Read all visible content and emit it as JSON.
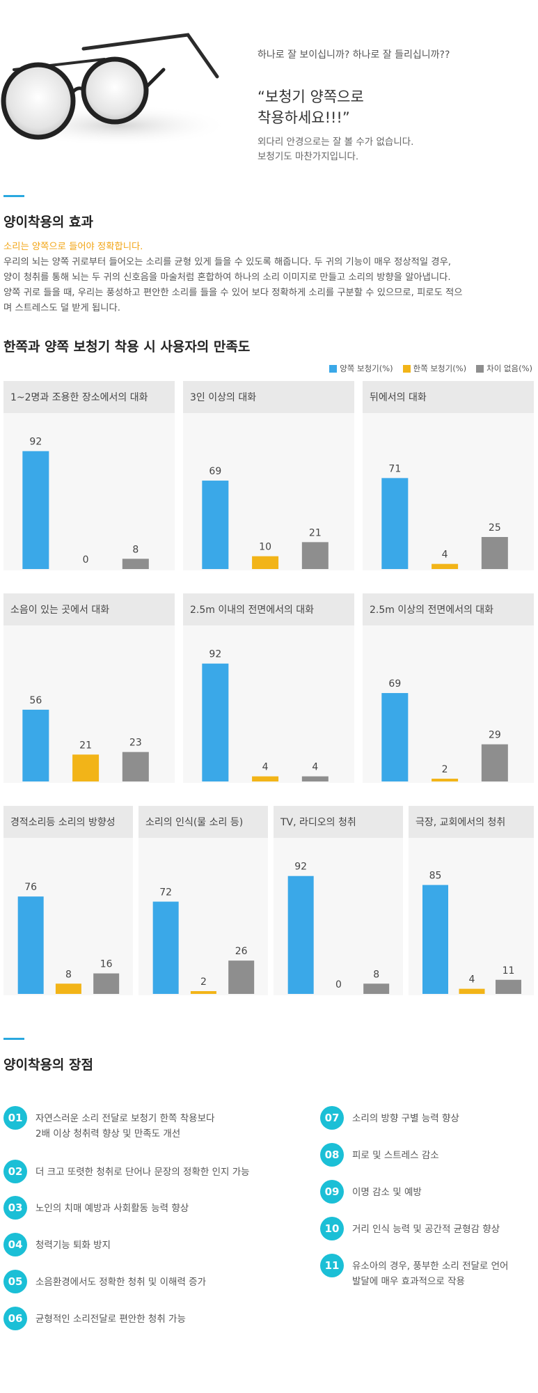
{
  "hero": {
    "question": "하나로 잘 보이십니까? 하나로 잘 들리십니까??",
    "title_line1": "“보청기 양쪽으로",
    "title_line2": "착용하세요!!!”",
    "sub_line1": "외다리 안경으로는 잘 볼 수가 없습니다.",
    "sub_line2": "보청기도 마찬가지입니다.",
    "image_name": "glasses-image"
  },
  "effect": {
    "title": "양이착용의 효과",
    "lead": "소리는 양쪽으로 들어야 정확합니다.",
    "lines": [
      "우리의 뇌는 양쪽 귀로부터 들어오는 소리를 균형 있게 들을 수 있도록 해줍니다. 두 귀의 기능이 매우 정상적일 경우,",
      "양이 청취를 통해 뇌는 두 귀의 신호음을 마술처럼 혼합하여 하나의 소리 이미지로 만들고 소리의 방향을 알아냅니다.",
      "양쪽 귀로 들을 때, 우리는 풍성하고 편안한 소리를 들을 수 있어 보다 정확하게 소리를 구분할 수 있으므로, 피로도 적으",
      "며 스트레스도 덜 받게 됩니다."
    ]
  },
  "satisfaction": {
    "title": "한쪽과 양쪽 보청기 착용 시 사용자의 만족도",
    "legend": [
      {
        "label": "양쪽 보청기(%)",
        "color": "#3aa8e8"
      },
      {
        "label": "한쪽 보청기(%)",
        "color": "#f2b418"
      },
      {
        "label": "차이 없음(%)",
        "color": "#8e8e8e"
      }
    ]
  },
  "chart_data": [
    {
      "type": "bar",
      "title": "1~2명과 조용한 장소에서의 대화",
      "categories": [
        "양쪽 보청기(%)",
        "한쪽 보청기(%)",
        "차이 없음(%)"
      ],
      "values": [
        92,
        0,
        8
      ],
      "ylim": [
        0,
        100
      ]
    },
    {
      "type": "bar",
      "title": "3인 이상의 대화",
      "categories": [
        "양쪽 보청기(%)",
        "한쪽 보청기(%)",
        "차이 없음(%)"
      ],
      "values": [
        69,
        10,
        21
      ],
      "ylim": [
        0,
        100
      ]
    },
    {
      "type": "bar",
      "title": "뒤에서의 대화",
      "categories": [
        "양쪽 보청기(%)",
        "한쪽 보청기(%)",
        "차이 없음(%)"
      ],
      "values": [
        71,
        4,
        25
      ],
      "ylim": [
        0,
        100
      ]
    },
    {
      "type": "bar",
      "title": "소음이 있는 곳에서 대화",
      "categories": [
        "양쪽 보청기(%)",
        "한쪽 보청기(%)",
        "차이 없음(%)"
      ],
      "values": [
        56,
        21,
        23
      ],
      "ylim": [
        0,
        100
      ]
    },
    {
      "type": "bar",
      "title": "2.5m 이내의 전면에서의 대화",
      "categories": [
        "양쪽 보청기(%)",
        "한쪽 보청기(%)",
        "차이 없음(%)"
      ],
      "values": [
        92,
        4,
        4
      ],
      "ylim": [
        0,
        100
      ]
    },
    {
      "type": "bar",
      "title": "2.5m 이상의 전면에서의 대화",
      "categories": [
        "양쪽 보청기(%)",
        "한쪽 보청기(%)",
        "차이 없음(%)"
      ],
      "values": [
        69,
        2,
        29
      ],
      "ylim": [
        0,
        100
      ]
    },
    {
      "type": "bar",
      "title": "경적소리등 소리의 방향성",
      "categories": [
        "양쪽 보청기(%)",
        "한쪽 보청기(%)",
        "차이 없음(%)"
      ],
      "values": [
        76,
        8,
        16
      ],
      "ylim": [
        0,
        100
      ]
    },
    {
      "type": "bar",
      "title": "소리의 인식(물 소리 등)",
      "categories": [
        "양쪽 보청기(%)",
        "한쪽 보청기(%)",
        "차이 없음(%)"
      ],
      "values": [
        72,
        2,
        26
      ],
      "ylim": [
        0,
        100
      ]
    },
    {
      "type": "bar",
      "title": "TV, 라디오의 청취",
      "categories": [
        "양쪽 보청기(%)",
        "한쪽 보청기(%)",
        "차이 없음(%)"
      ],
      "values": [
        92,
        0,
        8
      ],
      "ylim": [
        0,
        100
      ]
    },
    {
      "type": "bar",
      "title": "극장, 교회에서의 청취",
      "categories": [
        "양쪽 보청기(%)",
        "한쪽 보청기(%)",
        "차이 없음(%)"
      ],
      "values": [
        85,
        4,
        11
      ],
      "ylim": [
        0,
        100
      ]
    }
  ],
  "advantages": {
    "title": "양이착용의 장점",
    "items": [
      {
        "num": "01",
        "line1": "자연스러운 소리 전달로 보청기 한쪽 착용보다",
        "line2": "2배 이상 청취력 향상 및 만족도 개선"
      },
      {
        "num": "02",
        "line1": "더 크고 또렷한 청취로 단어나 문장의 정확한 인지 가능",
        "line2": ""
      },
      {
        "num": "03",
        "line1": "노인의 치매 예방과 사회활동 능력 향상",
        "line2": ""
      },
      {
        "num": "04",
        "line1": "청력기능 퇴화 방지",
        "line2": ""
      },
      {
        "num": "05",
        "line1": "소음환경에서도 정확한 청취 및 이해력 증가",
        "line2": ""
      },
      {
        "num": "06",
        "line1": "균형적인 소리전달로 편안한 청취 가능",
        "line2": ""
      },
      {
        "num": "07",
        "line1": "소리의 방향 구별 능력 향상",
        "line2": ""
      },
      {
        "num": "08",
        "line1": "피로 및 스트레스 감소",
        "line2": ""
      },
      {
        "num": "09",
        "line1": "이명 감소 및 예방",
        "line2": ""
      },
      {
        "num": "10",
        "line1": "거리 인식 능력 및 공간적 균형감 향상",
        "line2": ""
      },
      {
        "num": "11",
        "line1": "유소아의 경우, 풍부한 소리 전달로 언어",
        "line2": "발달에 매우 효과적으로 작용"
      }
    ]
  }
}
